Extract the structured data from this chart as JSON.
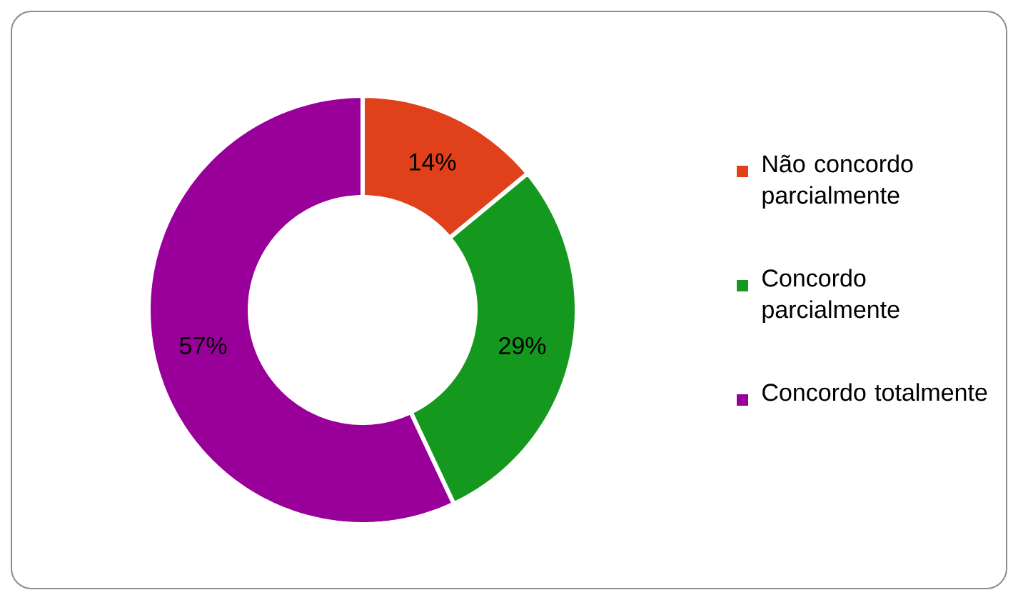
{
  "chart_data": {
    "type": "donut",
    "categories": [
      "Não concordo parcialmente",
      "Concordo parcialmente",
      "Concordo totalmente"
    ],
    "values": [
      14,
      29,
      57
    ],
    "colors": [
      "#e0401a",
      "#14991e",
      "#990099"
    ],
    "value_labels": [
      "14%",
      "29%",
      "57%"
    ],
    "legend": "right"
  }
}
